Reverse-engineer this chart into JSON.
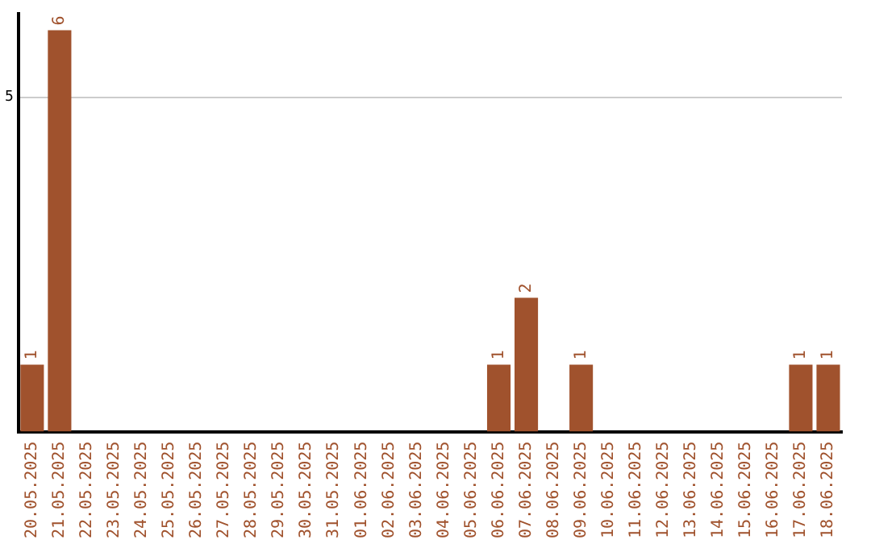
{
  "chart_data": {
    "type": "bar",
    "categories": [
      "20.05.2025",
      "21.05.2025",
      "22.05.2025",
      "23.05.2025",
      "24.05.2025",
      "25.05.2025",
      "26.05.2025",
      "27.05.2025",
      "28.05.2025",
      "29.05.2025",
      "30.05.2025",
      "31.05.2025",
      "01.06.2025",
      "02.06.2025",
      "03.06.2025",
      "04.06.2025",
      "05.06.2025",
      "06.06.2025",
      "07.06.2025",
      "08.06.2025",
      "09.06.2025",
      "10.06.2025",
      "11.06.2025",
      "12.06.2025",
      "13.06.2025",
      "14.06.2025",
      "15.06.2025",
      "16.06.2025",
      "17.06.2025",
      "18.06.2025"
    ],
    "values": [
      1,
      6,
      0,
      0,
      0,
      0,
      0,
      0,
      0,
      0,
      0,
      0,
      0,
      0,
      0,
      0,
      0,
      1,
      2,
      0,
      1,
      0,
      0,
      0,
      0,
      0,
      0,
      0,
      1,
      1
    ],
    "value_labels": [
      "1",
      "6",
      null,
      null,
      null,
      null,
      null,
      null,
      null,
      null,
      null,
      null,
      null,
      null,
      null,
      null,
      null,
      "1",
      "2",
      null,
      "1",
      null,
      null,
      null,
      null,
      null,
      null,
      null,
      "1",
      "1"
    ],
    "color": "#a0522d",
    "ylim": [
      0,
      6.25
    ],
    "yticks": [
      5
    ],
    "grid": "y",
    "legend": false
  }
}
